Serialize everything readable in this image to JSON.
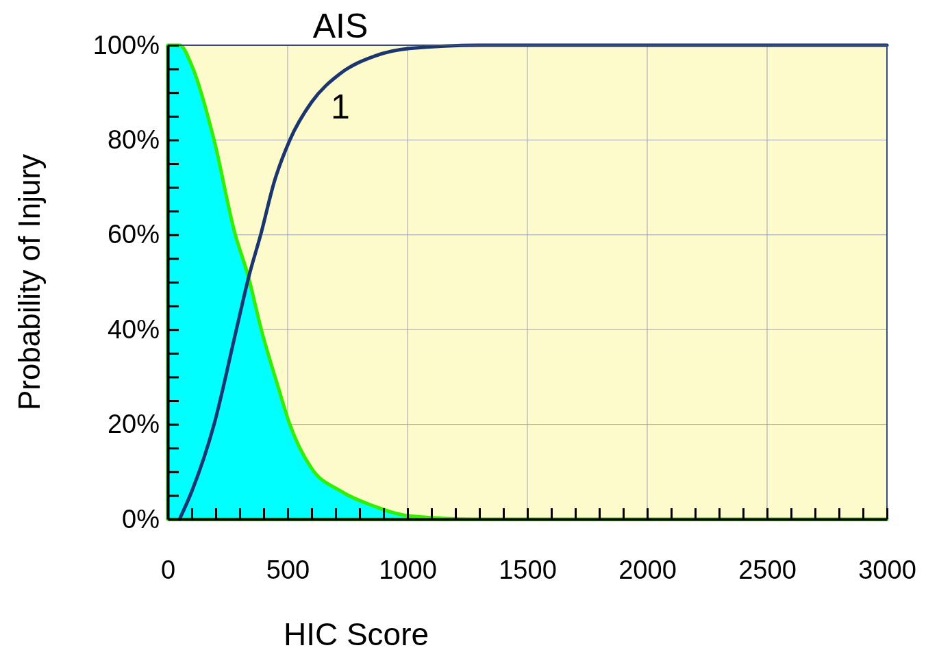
{
  "chart_data": {
    "type": "area",
    "title": "AIS",
    "xlabel": "HIC Score",
    "ylabel": "Probability of Injury",
    "xlim": [
      0,
      3000
    ],
    "ylim": [
      0,
      100
    ],
    "xticks": [
      0,
      {
        "value": 100,
        "label": null
      },
      {
        "value": 200,
        "label": null
      },
      {
        "value": 300,
        "label": null
      },
      {
        "value": 400,
        "label": null
      },
      500,
      {
        "value": 600,
        "label": null
      },
      {
        "value": 700,
        "label": null
      },
      {
        "value": 800,
        "label": null
      },
      {
        "value": 900,
        "label": null
      },
      1000,
      {
        "value": 1100,
        "label": null
      },
      {
        "value": 1200,
        "label": null
      },
      {
        "value": 1300,
        "label": null
      },
      {
        "value": 1400,
        "label": null
      },
      1500,
      {
        "value": 1600,
        "label": null
      },
      {
        "value": 1700,
        "label": null
      },
      {
        "value": 1800,
        "label": null
      },
      {
        "value": 1900,
        "label": null
      },
      2000,
      {
        "value": 2100,
        "label": null
      },
      {
        "value": 2200,
        "label": null
      },
      {
        "value": 2300,
        "label": null
      },
      {
        "value": 2400,
        "label": null
      },
      2500,
      {
        "value": 2600,
        "label": null
      },
      {
        "value": 2700,
        "label": null
      },
      {
        "value": 2800,
        "label": null
      },
      {
        "value": 2900,
        "label": null
      },
      3000
    ],
    "yticks": [
      {
        "value": 0,
        "label": "0%"
      },
      {
        "value": 5,
        "label": null
      },
      {
        "value": 10,
        "label": null
      },
      {
        "value": 15,
        "label": null
      },
      {
        "value": 20,
        "label": "20%"
      },
      {
        "value": 25,
        "label": null
      },
      {
        "value": 30,
        "label": null
      },
      {
        "value": 35,
        "label": null
      },
      {
        "value": 40,
        "label": "40%"
      },
      {
        "value": 45,
        "label": null
      },
      {
        "value": 50,
        "label": null
      },
      {
        "value": 55,
        "label": null
      },
      {
        "value": 60,
        "label": "60%"
      },
      {
        "value": 65,
        "label": null
      },
      {
        "value": 70,
        "label": null
      },
      {
        "value": 75,
        "label": null
      },
      {
        "value": 80,
        "label": "80%"
      },
      {
        "value": 85,
        "label": null
      },
      {
        "value": 90,
        "label": null
      },
      {
        "value": 95,
        "label": null
      },
      {
        "value": 100,
        "label": "100%"
      }
    ],
    "grid": true,
    "annotations": [
      "1"
    ],
    "series": [
      {
        "color": "#00ffff",
        "x": [
          0,
          50,
          101,
          193,
          279,
          337,
          390,
          456,
          509,
          600,
          719,
          863,
          1007,
          1300,
          3000
        ],
        "values": [
          100,
          100,
          95.6,
          80,
          60.5,
          51,
          40,
          28.6,
          20,
          10.7,
          6,
          2.7,
          0.7,
          0,
          0
        ]
      },
      {
        "type": "line",
        "color": "#1a3570",
        "x": [
          49,
          101,
          193,
          286,
          337,
          390,
          443,
          509,
          600,
          719,
          863,
          1007,
          1300,
          3000
        ],
        "values": [
          0,
          6,
          20,
          40,
          51,
          60.5,
          71,
          80,
          88,
          94,
          97.7,
          99.3,
          100,
          100
        ]
      }
    ]
  }
}
